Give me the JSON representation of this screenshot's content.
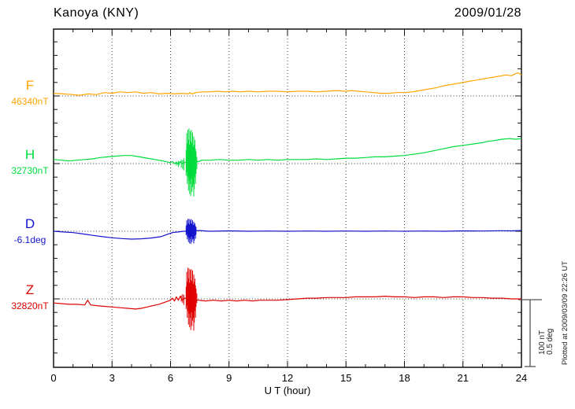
{
  "header": {
    "title": "Kanoya (KNY)",
    "date": "2009/01/28"
  },
  "axis": {
    "xlabel": "U T (hour)",
    "x_ticks": [
      0,
      3,
      6,
      9,
      12,
      15,
      18,
      21,
      24
    ]
  },
  "components": [
    {
      "label": "F",
      "value": "46340nT"
    },
    {
      "label": "H",
      "value": "32730nT"
    },
    {
      "label": "D",
      "value": "-6.1deg"
    },
    {
      "label": "Z",
      "value": "32820nT"
    }
  ],
  "scalebar": {
    "line1": "100 nT",
    "line2": "0.5 deg"
  },
  "footer": {
    "plotted_at": "Plotted at 2009/03/09 22:26 UT"
  },
  "chart_data": {
    "type": "line",
    "title": "Kanoya (KNY)",
    "date": "2009/01/28",
    "xlabel": "U T (hour)",
    "x_range": [
      0,
      24
    ],
    "x_ticks": [
      0,
      3,
      6,
      9,
      12,
      15,
      18,
      21,
      24
    ],
    "grid": "dotted vertical every 3 h; dotted horizontal baseline per component",
    "scale_bar": {
      "nT_per_division": 100,
      "deg_per_division": 0.5
    },
    "note": "points are [UT hour, offset from base value]; burst spikes are [UT hour, up offset, down offset] in the same unit",
    "series": [
      {
        "name": "F",
        "unit": "nT",
        "base": 46340,
        "color": "#FFA500",
        "points": [
          [
            0,
            4
          ],
          [
            0.5,
            3
          ],
          [
            1,
            2
          ],
          [
            1.3,
            1
          ],
          [
            1.8,
            3
          ],
          [
            2.2,
            2
          ],
          [
            2.6,
            5
          ],
          [
            3,
            4
          ],
          [
            3.4,
            6
          ],
          [
            3.8,
            5
          ],
          [
            4.2,
            6
          ],
          [
            4.6,
            4
          ],
          [
            5,
            5
          ],
          [
            5.4,
            3
          ],
          [
            5.8,
            4
          ],
          [
            6.2,
            3
          ],
          [
            6.6,
            4
          ],
          [
            6.9,
            3
          ],
          [
            7,
            5
          ],
          [
            7.1,
            3
          ],
          [
            7.3,
            5
          ],
          [
            7.6,
            6
          ],
          [
            8,
            6
          ],
          [
            8.4,
            7
          ],
          [
            8.8,
            6
          ],
          [
            9.2,
            7
          ],
          [
            9.6,
            6
          ],
          [
            10,
            7
          ],
          [
            10.5,
            6
          ],
          [
            11,
            7
          ],
          [
            11.5,
            7
          ],
          [
            12,
            6
          ],
          [
            12.5,
            7
          ],
          [
            13,
            7
          ],
          [
            13.5,
            6
          ],
          [
            14,
            7
          ],
          [
            14.5,
            8
          ],
          [
            15,
            7
          ],
          [
            15.3,
            8
          ],
          [
            15.6,
            7
          ],
          [
            16,
            6
          ],
          [
            16.4,
            5
          ],
          [
            16.8,
            4
          ],
          [
            17.2,
            4
          ],
          [
            17.6,
            5
          ],
          [
            18,
            5
          ],
          [
            18.4,
            6
          ],
          [
            18.8,
            8
          ],
          [
            19.2,
            10
          ],
          [
            19.6,
            12
          ],
          [
            20,
            15
          ],
          [
            20.4,
            17
          ],
          [
            20.8,
            19
          ],
          [
            21.2,
            21
          ],
          [
            21.6,
            23
          ],
          [
            22,
            25
          ],
          [
            22.4,
            27
          ],
          [
            22.8,
            29
          ],
          [
            23.2,
            31
          ],
          [
            23.5,
            30
          ],
          [
            23.7,
            33
          ],
          [
            23.85,
            34
          ],
          [
            24,
            31
          ]
        ],
        "burst": []
      },
      {
        "name": "H",
        "unit": "nT",
        "base": 32730,
        "color": "#00DC3C",
        "points": [
          [
            0,
            6
          ],
          [
            0.4,
            5
          ],
          [
            0.8,
            4
          ],
          [
            1.2,
            5
          ],
          [
            1.6,
            6
          ],
          [
            2,
            7
          ],
          [
            2.4,
            9
          ],
          [
            2.8,
            10
          ],
          [
            3.2,
            11
          ],
          [
            3.6,
            12
          ],
          [
            4,
            12
          ],
          [
            4.4,
            10
          ],
          [
            4.8,
            8
          ],
          [
            5.2,
            6
          ],
          [
            5.6,
            4
          ],
          [
            5.9,
            2
          ],
          [
            6,
            1
          ],
          [
            6.1,
            3
          ],
          [
            6.2,
            0
          ],
          [
            6.3,
            2
          ],
          [
            6.4,
            -1
          ],
          [
            6.5,
            3
          ],
          [
            6.6,
            0
          ],
          [
            6.7,
            2
          ],
          [
            7.45,
            3
          ],
          [
            7.6,
            5
          ],
          [
            8,
            5
          ],
          [
            8.5,
            6
          ],
          [
            9,
            5
          ],
          [
            9.5,
            5
          ],
          [
            10,
            6
          ],
          [
            10.5,
            5
          ],
          [
            11,
            6
          ],
          [
            11.5,
            5
          ],
          [
            12,
            6
          ],
          [
            12.5,
            6
          ],
          [
            13,
            6
          ],
          [
            13.5,
            7
          ],
          [
            14,
            6
          ],
          [
            14.5,
            7
          ],
          [
            15,
            8
          ],
          [
            15.5,
            8
          ],
          [
            16,
            9
          ],
          [
            16.5,
            10
          ],
          [
            17,
            10
          ],
          [
            17.5,
            11
          ],
          [
            18,
            12
          ],
          [
            18.5,
            14
          ],
          [
            19,
            16
          ],
          [
            19.5,
            19
          ],
          [
            20,
            22
          ],
          [
            20.5,
            25
          ],
          [
            21,
            27
          ],
          [
            21.5,
            29
          ],
          [
            22,
            31
          ],
          [
            22.3,
            33
          ],
          [
            22.6,
            34
          ],
          [
            23,
            36
          ],
          [
            23.4,
            37
          ],
          [
            23.7,
            36
          ],
          [
            24,
            37
          ]
        ],
        "burst": [
          [
            6.3,
            3,
            -3
          ],
          [
            6.4,
            4,
            -5
          ],
          [
            6.45,
            3,
            -2
          ],
          [
            6.55,
            6,
            -6
          ],
          [
            6.62,
            5,
            -8
          ],
          [
            6.68,
            8,
            -10
          ],
          [
            6.8,
            20,
            -18
          ],
          [
            6.83,
            45,
            -12
          ],
          [
            6.86,
            30,
            -30
          ],
          [
            6.89,
            50,
            -20
          ],
          [
            6.92,
            35,
            -40
          ],
          [
            6.95,
            52,
            -25
          ],
          [
            6.98,
            28,
            -45
          ],
          [
            7.01,
            48,
            -30
          ],
          [
            7.04,
            33,
            -48
          ],
          [
            7.07,
            50,
            -22
          ],
          [
            7.1,
            30,
            -42
          ],
          [
            7.13,
            46,
            -35
          ],
          [
            7.16,
            25,
            -30
          ],
          [
            7.19,
            40,
            -49
          ],
          [
            7.22,
            28,
            -38
          ],
          [
            7.25,
            35,
            -20
          ],
          [
            7.28,
            22,
            -30
          ],
          [
            7.31,
            18,
            -15
          ],
          [
            7.35,
            10,
            -8
          ]
        ]
      },
      {
        "name": "D",
        "unit": "deg",
        "base": -6.1,
        "color": "#1414CC",
        "points": [
          [
            0,
            0
          ],
          [
            0.5,
            -0.005
          ],
          [
            1,
            -0.01
          ],
          [
            1.5,
            -0.02
          ],
          [
            2,
            -0.03
          ],
          [
            2.5,
            -0.04
          ],
          [
            3,
            -0.048
          ],
          [
            3.5,
            -0.054
          ],
          [
            4,
            -0.058
          ],
          [
            4.5,
            -0.056
          ],
          [
            5,
            -0.05
          ],
          [
            5.5,
            -0.04
          ],
          [
            5.8,
            -0.025
          ],
          [
            6.1,
            -0.01
          ],
          [
            6.4,
            -0.005
          ],
          [
            6.7,
            0
          ],
          [
            7.5,
            0.005
          ],
          [
            8,
            0
          ],
          [
            9,
            0.003
          ],
          [
            10,
            0
          ],
          [
            11,
            0.002
          ],
          [
            12,
            0
          ],
          [
            13,
            0.002
          ],
          [
            14,
            0
          ],
          [
            15,
            0.002
          ],
          [
            16,
            0
          ],
          [
            17,
            0.002
          ],
          [
            18,
            0
          ],
          [
            19,
            0.002
          ],
          [
            20,
            0
          ],
          [
            21,
            0.003
          ],
          [
            22,
            0.002
          ],
          [
            23,
            0.004
          ],
          [
            23.5,
            0.003
          ],
          [
            24,
            0.005
          ]
        ],
        "burst": [
          [
            6.8,
            0.04,
            -0.03
          ],
          [
            6.83,
            0.08,
            -0.02
          ],
          [
            6.86,
            0.05,
            -0.06
          ],
          [
            6.89,
            0.09,
            -0.04
          ],
          [
            6.92,
            0.06,
            -0.08
          ],
          [
            6.95,
            0.093,
            -0.05
          ],
          [
            6.98,
            0.05,
            -0.09
          ],
          [
            7.01,
            0.085,
            -0.06
          ],
          [
            7.04,
            0.06,
            -0.093
          ],
          [
            7.07,
            0.09,
            -0.04
          ],
          [
            7.1,
            0.055,
            -0.08
          ],
          [
            7.13,
            0.08,
            -0.06
          ],
          [
            7.16,
            0.045,
            -0.055
          ],
          [
            7.19,
            0.07,
            -0.09
          ],
          [
            7.22,
            0.05,
            -0.07
          ],
          [
            7.25,
            0.06,
            -0.035
          ],
          [
            7.28,
            0.04,
            -0.055
          ],
          [
            7.31,
            0.03,
            -0.025
          ]
        ]
      },
      {
        "name": "Z",
        "unit": "nT",
        "base": 32820,
        "color": "#E00000",
        "points": [
          [
            0,
            -6
          ],
          [
            0.4,
            -7
          ],
          [
            0.8,
            -8
          ],
          [
            1.2,
            -8
          ],
          [
            1.6,
            -9
          ],
          [
            1.75,
            -2
          ],
          [
            1.9,
            -9
          ],
          [
            2.2,
            -10
          ],
          [
            2.6,
            -11
          ],
          [
            3,
            -12
          ],
          [
            3.4,
            -13
          ],
          [
            3.8,
            -14
          ],
          [
            4.2,
            -15
          ],
          [
            4.5,
            -14
          ],
          [
            4.8,
            -12
          ],
          [
            5.1,
            -10
          ],
          [
            5.4,
            -8
          ],
          [
            5.7,
            -5
          ],
          [
            6,
            -2
          ],
          [
            6.1,
            1
          ],
          [
            6.2,
            -3
          ],
          [
            6.3,
            3
          ],
          [
            6.4,
            -2
          ],
          [
            6.5,
            4
          ],
          [
            6.6,
            -2
          ],
          [
            6.7,
            1
          ],
          [
            7.45,
            -2
          ],
          [
            7.8,
            -3
          ],
          [
            8.2,
            -2
          ],
          [
            8.6,
            -3
          ],
          [
            9,
            -2
          ],
          [
            9.4,
            -3
          ],
          [
            9.8,
            -2
          ],
          [
            10.2,
            -3
          ],
          [
            10.6,
            -2
          ],
          [
            11,
            -2
          ],
          [
            11.5,
            -2
          ],
          [
            12,
            -1
          ],
          [
            12.5,
            0
          ],
          [
            13,
            1
          ],
          [
            13.5,
            1
          ],
          [
            14,
            2
          ],
          [
            14.5,
            2
          ],
          [
            15,
            2
          ],
          [
            15.5,
            3
          ],
          [
            16,
            3
          ],
          [
            16.5,
            3
          ],
          [
            17,
            4
          ],
          [
            17.5,
            3
          ],
          [
            18,
            3
          ],
          [
            18.5,
            2
          ],
          [
            19,
            3
          ],
          [
            19.5,
            3
          ],
          [
            20,
            2
          ],
          [
            20.5,
            3
          ],
          [
            21,
            3
          ],
          [
            21.5,
            2
          ],
          [
            22,
            2
          ],
          [
            22.5,
            1
          ],
          [
            23,
            1
          ],
          [
            23.5,
            0
          ],
          [
            24,
            0
          ]
        ],
        "burst": [
          [
            6.55,
            5,
            -4
          ],
          [
            6.62,
            7,
            -6
          ],
          [
            6.68,
            6,
            -9
          ],
          [
            6.8,
            18,
            -15
          ],
          [
            6.83,
            40,
            -10
          ],
          [
            6.86,
            25,
            -28
          ],
          [
            6.89,
            46,
            -18
          ],
          [
            6.92,
            30,
            -38
          ],
          [
            6.95,
            45,
            -22
          ],
          [
            6.98,
            24,
            -42
          ],
          [
            7.01,
            43,
            -28
          ],
          [
            7.04,
            28,
            -46
          ],
          [
            7.07,
            44,
            -20
          ],
          [
            7.1,
            26,
            -40
          ],
          [
            7.13,
            42,
            -32
          ],
          [
            7.16,
            22,
            -28
          ],
          [
            7.19,
            36,
            -47
          ],
          [
            7.22,
            25,
            -35
          ],
          [
            7.25,
            30,
            -18
          ],
          [
            7.28,
            20,
            -28
          ],
          [
            7.31,
            15,
            -12
          ],
          [
            7.35,
            8,
            -6
          ]
        ]
      }
    ]
  }
}
